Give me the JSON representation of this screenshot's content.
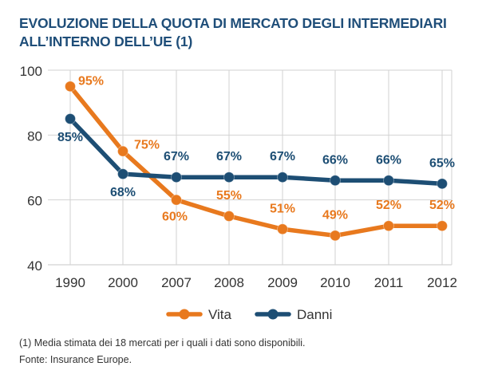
{
  "title": {
    "line1": "EVOLUZIONE DELLA QUOTA DI MERCATO DEGLI INTERMEDIARI",
    "line2": "ALL’INTERNO DELL’UE (1)"
  },
  "chart_data": {
    "type": "line",
    "categories": [
      "1990",
      "2000",
      "2007",
      "2008",
      "2009",
      "2010",
      "2011",
      "2012"
    ],
    "series": [
      {
        "name": "Vita",
        "color": "#e8791e",
        "values": [
          95,
          75,
          60,
          55,
          51,
          49,
          52,
          52
        ],
        "labels": [
          "95%",
          "75%",
          "60%",
          "55%",
          "51%",
          "49%",
          "52%",
          "52%"
        ]
      },
      {
        "name": "Danni",
        "color": "#1d4e74",
        "values": [
          85,
          68,
          67,
          67,
          67,
          66,
          66,
          65
        ],
        "labels": [
          "85%",
          "68%",
          "67%",
          "67%",
          "67%",
          "66%",
          "66%",
          "65%"
        ]
      }
    ],
    "yticks": [
      "100",
      "80",
      "60",
      "40"
    ],
    "ylim": [
      40,
      100
    ],
    "grid": true,
    "legend": "bottom-center"
  },
  "footnote": "(1) Media stimata dei 18 mercati per i quali i dati sono disponibili.",
  "source": "Fonte: Insurance Europe."
}
